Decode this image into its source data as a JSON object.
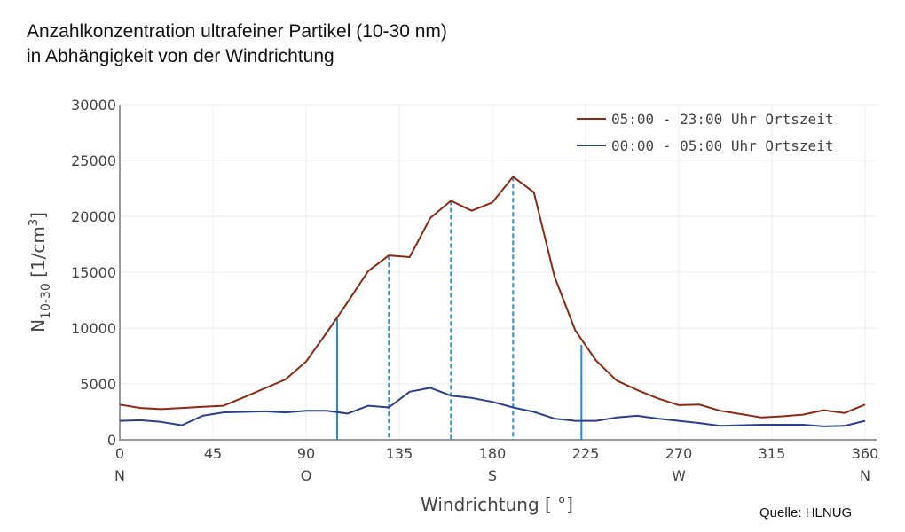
{
  "title_line1": "Anzahlkonzentration ultrafeiner Partikel (10-30 nm)",
  "title_line2": "in Abhängigkeit von der Windrichtung",
  "source": "Quelle:  HLNUG",
  "colors": {
    "series_day": "#8b2a14",
    "series_night": "#2b3f8c",
    "markers": "#1f8fd6",
    "grid": "#ececec",
    "axis": "#999999"
  },
  "chart_data": {
    "type": "line",
    "title": "Anzahlkonzentration ultrafeiner Partikel (10-30 nm) in Abhängigkeit von der Windrichtung",
    "xlabel": "Windrichtung [ °]",
    "ylabel": "N10-30 [1/cm3]",
    "ylabel_main": "N",
    "ylabel_sub": "10-30",
    "ylabel_unit": " [1/cm",
    "ylabel_sup": "3",
    "ylabel_close": "]",
    "xlim": [
      0,
      360
    ],
    "ylim": [
      0,
      30000
    ],
    "xticks": [
      0,
      45,
      90,
      135,
      180,
      225,
      270,
      315,
      360
    ],
    "xtick_compass": [
      {
        "x": 0,
        "label": "N"
      },
      {
        "x": 90,
        "label": "O"
      },
      {
        "x": 180,
        "label": "S"
      },
      {
        "x": 270,
        "label": "W"
      },
      {
        "x": 360,
        "label": "N"
      }
    ],
    "yticks": [
      0,
      5000,
      10000,
      15000,
      20000,
      25000,
      30000
    ],
    "grid": true,
    "legend_position": "top-right",
    "x": [
      0,
      10,
      20,
      30,
      40,
      50,
      60,
      70,
      80,
      90,
      100,
      110,
      120,
      130,
      140,
      150,
      160,
      170,
      180,
      190,
      200,
      210,
      220,
      230,
      240,
      250,
      260,
      270,
      280,
      290,
      300,
      310,
      320,
      330,
      340,
      350,
      360
    ],
    "series": [
      {
        "name": "05:00 - 23:00 Uhr Ortszeit",
        "color": "#8b2a14",
        "values": [
          3150,
          2850,
          2750,
          2850,
          2950,
          3050,
          3800,
          4600,
          5400,
          7000,
          9600,
          12300,
          15100,
          16500,
          16350,
          19850,
          21400,
          20500,
          21250,
          23550,
          22150,
          14600,
          9800,
          7100,
          5300,
          4450,
          3700,
          3100,
          3150,
          2600,
          2300,
          2000,
          2100,
          2250,
          2650,
          2400,
          3150
        ]
      },
      {
        "name": "00:00 - 05:00 Uhr Ortszeit",
        "color": "#2b3f8c",
        "values": [
          1700,
          1750,
          1600,
          1300,
          2150,
          2450,
          2500,
          2550,
          2450,
          2600,
          2600,
          2350,
          3050,
          2900,
          4300,
          4650,
          3950,
          3750,
          3400,
          2900,
          2500,
          1900,
          1700,
          1700,
          2000,
          2150,
          1900,
          1700,
          1500,
          1250,
          1300,
          1350,
          1350,
          1350,
          1200,
          1250,
          1700
        ]
      }
    ],
    "annotations": [
      {
        "type": "vline",
        "style": "solid",
        "x": 105,
        "y_top": 11000
      },
      {
        "type": "vline",
        "style": "dashed",
        "x": 130,
        "y_top": 16500
      },
      {
        "type": "vline",
        "style": "dashed",
        "x": 160,
        "y_top": 21400
      },
      {
        "type": "vline",
        "style": "dashed",
        "x": 190,
        "y_top": 23550
      },
      {
        "type": "vline",
        "style": "solid",
        "x": 223,
        "y_top": 8500
      }
    ]
  }
}
